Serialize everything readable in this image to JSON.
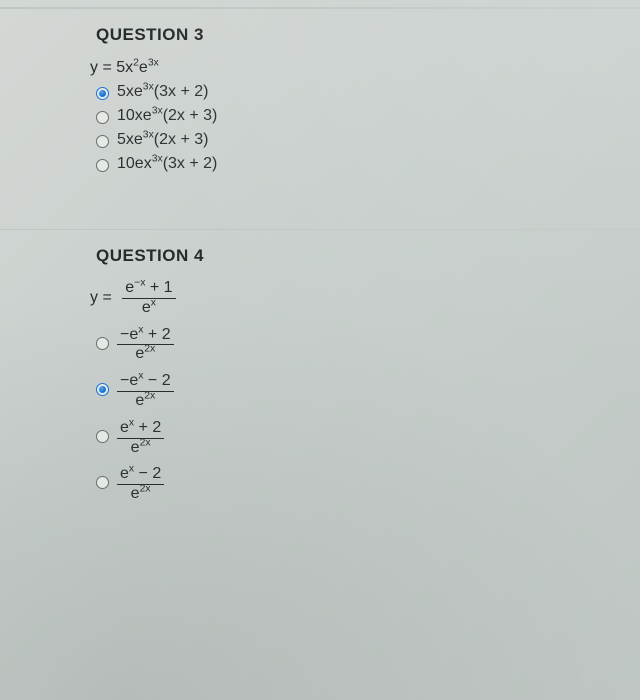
{
  "q3": {
    "title": "QUESTION 3",
    "stem_html": "y = 5x<sup>2</sup>e<sup>3x</sup>",
    "options": [
      {
        "selected": true,
        "html": "5xe<sup>3x</sup>(3x + 2)"
      },
      {
        "selected": false,
        "html": "10xe<sup>3x</sup>(2x + 3)"
      },
      {
        "selected": false,
        "html": "5xe<sup>3x</sup>(2x + 3)"
      },
      {
        "selected": false,
        "html": "10ex<sup>3x</sup>(3x + 2)"
      }
    ]
  },
  "q4": {
    "title": "QUESTION 4",
    "stem_frac": {
      "num": "e<sup>&minus;x</sup> + 1",
      "den": "e<sup>x</sup>"
    },
    "options": [
      {
        "selected": false,
        "num": "&minus;e<sup>x</sup> + 2",
        "den": "e<sup>2x</sup>"
      },
      {
        "selected": true,
        "num": "&minus;e<sup>x</sup> &minus; 2",
        "den": "e<sup>2x</sup>"
      },
      {
        "selected": false,
        "num": "e<sup>x</sup> + 2",
        "den": "e<sup>2x</sup>"
      },
      {
        "selected": false,
        "num": "e<sup>x</sup> &minus; 2",
        "den": "e<sup>2x</sup>"
      }
    ]
  },
  "colors": {
    "accent": "#1b73d4",
    "text": "#2a2e2e",
    "rule": "#c0c6c2"
  }
}
